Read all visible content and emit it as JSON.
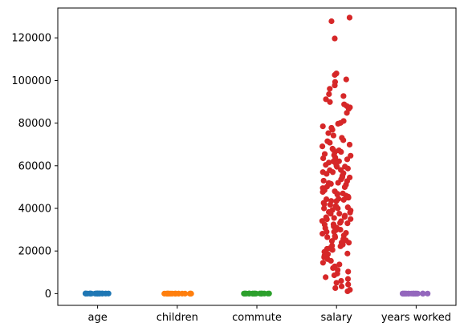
{
  "chart_data": {
    "type": "scatter",
    "subtype": "strip",
    "title": "",
    "xlabel": "",
    "ylabel": "",
    "categories": [
      "age",
      "children",
      "commute",
      "salary",
      "years worked"
    ],
    "ylim": [
      -5500,
      134000
    ],
    "yticks": [
      0,
      20000,
      40000,
      60000,
      80000,
      100000,
      120000
    ],
    "ytick_labels": [
      "0",
      "20000",
      "40000",
      "60000",
      "80000",
      "100000",
      "120000"
    ],
    "grid": false,
    "legend": "none",
    "series": [
      {
        "category": "age",
        "color": "#1f77b4",
        "values": [
          20,
          25,
          30,
          35,
          40,
          45,
          50,
          55,
          60,
          22,
          28,
          33,
          38,
          43,
          48,
          53,
          58,
          27,
          36,
          41
        ]
      },
      {
        "category": "children",
        "color": "#ff7f0e",
        "values": [
          0,
          1,
          2,
          3,
          0,
          1,
          2,
          0,
          1,
          4,
          2,
          1,
          0,
          3,
          1,
          2,
          0,
          1,
          2,
          5
        ]
      },
      {
        "category": "commute",
        "color": "#2ca02c",
        "values": [
          10,
          20,
          30,
          45,
          60,
          15,
          25,
          35,
          50,
          5,
          40,
          12,
          18,
          22,
          28,
          33,
          8,
          55,
          42,
          27
        ]
      },
      {
        "category": "salary",
        "color": "#d62728",
        "values": [
          129500,
          127800,
          119700,
          103300,
          102600,
          100500,
          99300,
          97700,
          96100,
          93600,
          92700,
          91200,
          89900,
          88800,
          88000,
          87400,
          86700,
          84800,
          81000,
          80100,
          79700,
          78500,
          77800,
          76900,
          75300,
          74200,
          73100,
          72000,
          70800,
          69900,
          69100,
          68000,
          67200,
          66400,
          65500,
          64700,
          63800,
          63000,
          62100,
          61300,
          60400,
          59600,
          58700,
          57900,
          57000,
          56200,
          55300,
          54500,
          53600,
          52800,
          51900,
          51100,
          50200,
          49400,
          48500,
          47700,
          46800,
          46000,
          45100,
          44300,
          43400,
          42600,
          41700,
          40900,
          40000,
          39200,
          38300,
          37500,
          36600,
          35800,
          34900,
          34100,
          33200,
          32400,
          31500,
          30700,
          29800,
          29000,
          28100,
          27300,
          26400,
          25600,
          24700,
          23900,
          23000,
          22200,
          21300,
          20500,
          19600,
          18800,
          17900,
          17100,
          16200,
          15400,
          14500,
          13700,
          12800,
          12000,
          11100,
          10300,
          9400,
          8600,
          7700,
          6900,
          6000,
          5100,
          4300,
          3400,
          2600,
          1800,
          1100,
          65000,
          60000,
          55000,
          50000,
          45000,
          40000,
          35000,
          30000,
          25000,
          48000,
          42000,
          38000,
          52000,
          58000,
          62000,
          44000,
          36000,
          31000,
          27000,
          33000,
          47000,
          53000,
          57000,
          41000,
          39000,
          34000,
          29000,
          24000,
          21000,
          18500,
          46500,
          43500,
          49500,
          54500,
          59500,
          63500,
          67500,
          71500,
          66500,
          61500,
          56500,
          51500,
          45500,
          37500,
          32500,
          28500,
          26500,
          22500,
          35500,
          40500,
          44500
        ]
      },
      {
        "category": "years worked",
        "color": "#9467bd",
        "values": [
          0,
          2,
          5,
          8,
          10,
          15,
          20,
          25,
          30,
          3,
          6,
          12,
          18,
          22,
          28,
          1,
          4,
          9,
          14,
          35
        ]
      }
    ]
  }
}
